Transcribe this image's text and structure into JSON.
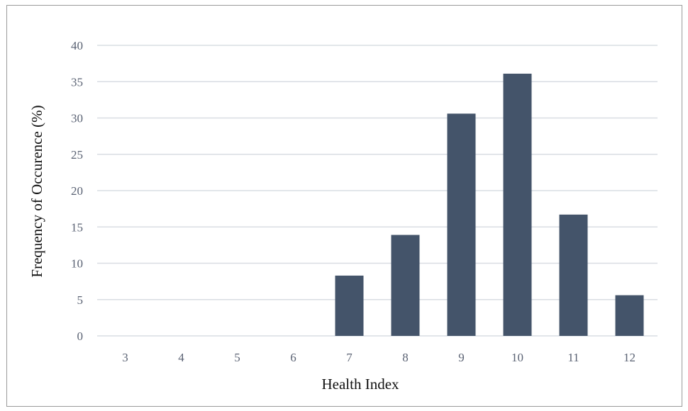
{
  "chart_data": {
    "type": "bar",
    "categories": [
      "3",
      "4",
      "5",
      "6",
      "7",
      "8",
      "9",
      "10",
      "11",
      "12"
    ],
    "values": [
      0,
      0,
      0,
      0,
      8.3,
      13.9,
      30.6,
      36.1,
      16.7,
      5.6
    ],
    "xlabel": "Health Index",
    "ylabel": "Frequency of Occurence (%)",
    "ylim": [
      0,
      40
    ],
    "yticks": [
      0,
      5,
      10,
      15,
      20,
      25,
      30,
      35,
      40
    ],
    "grid": true,
    "bar_color": "#44546a",
    "grid_color": "#d9dde3"
  }
}
